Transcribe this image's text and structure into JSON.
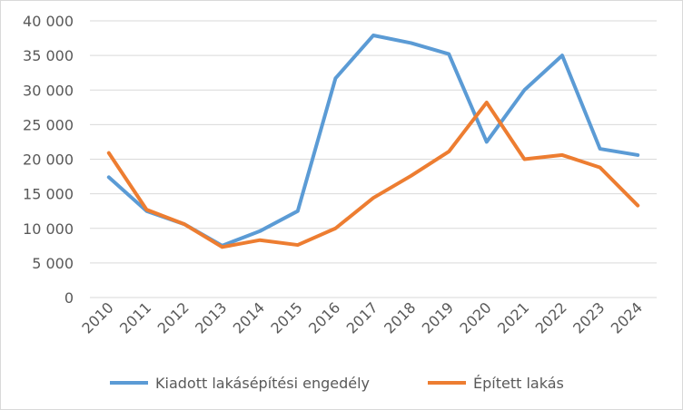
{
  "chart_data": {
    "type": "line",
    "title": "",
    "xlabel": "",
    "ylabel": "",
    "categories": [
      "2010",
      "2011",
      "2012",
      "2013",
      "2014",
      "2015",
      "2016",
      "2017",
      "2018",
      "2019",
      "2020",
      "2021",
      "2022",
      "2023",
      "2024"
    ],
    "ylim": [
      0,
      40000
    ],
    "yticks": [
      0,
      5000,
      10000,
      15000,
      20000,
      25000,
      30000,
      35000,
      40000
    ],
    "ytick_labels": [
      "0",
      "5 000",
      "10 000",
      "15 000",
      "20 000",
      "25 000",
      "30 000",
      "35 000",
      "40 000"
    ],
    "grid": true,
    "legend_position": "bottom",
    "series": [
      {
        "name": "Kiadott lakásépítési engedély",
        "color": "#5b9bd5",
        "values": [
          17400,
          12500,
          10600,
          7500,
          9600,
          12500,
          31700,
          37900,
          36800,
          35200,
          22500,
          30000,
          35000,
          21500,
          20600
        ]
      },
      {
        "name": "Épített lakás",
        "color": "#ed7d31",
        "values": [
          20900,
          12700,
          10600,
          7300,
          8300,
          7600,
          10000,
          14400,
          17600,
          21100,
          28200,
          20000,
          20600,
          18800,
          13300
        ]
      }
    ]
  }
}
